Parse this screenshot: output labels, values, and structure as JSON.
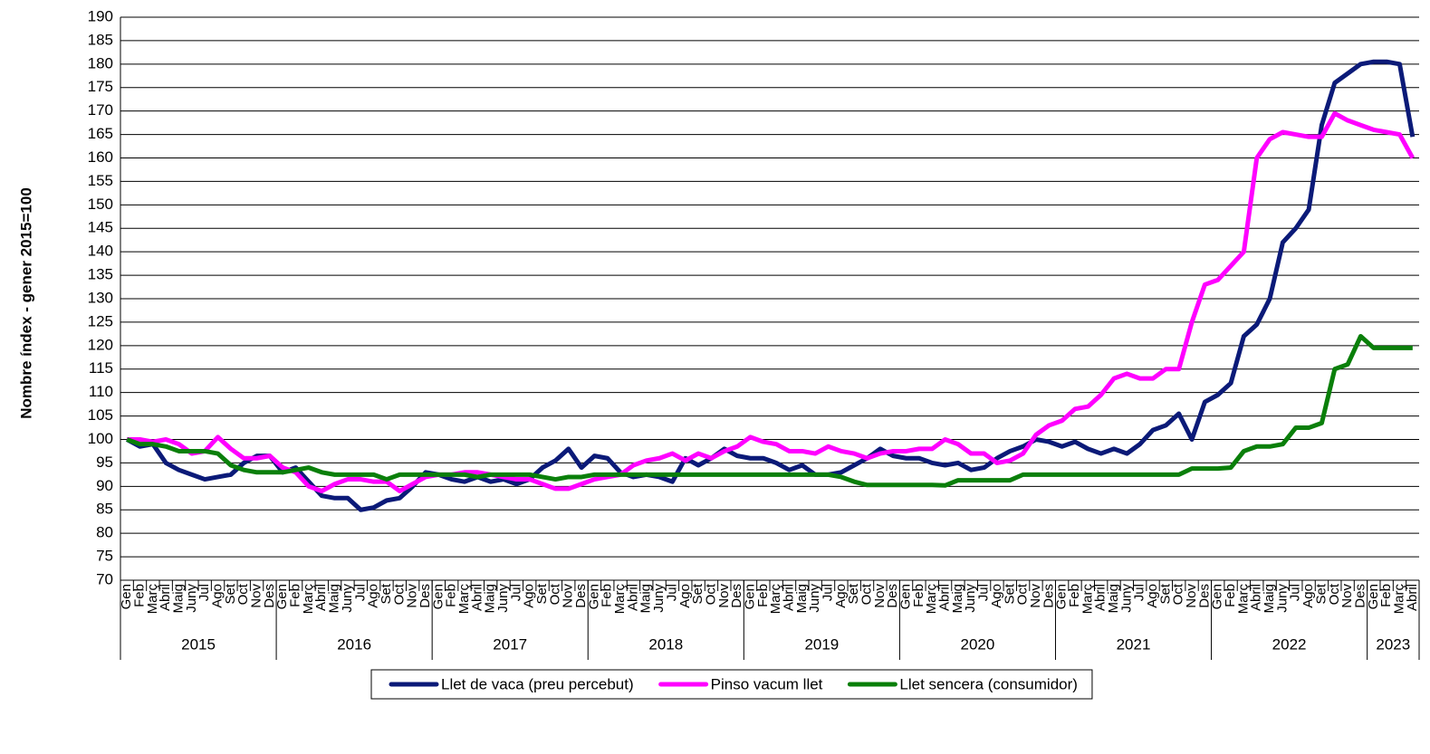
{
  "chart_data": {
    "type": "line",
    "y_label": "Nombre índex - gener 2015=100",
    "categories": [
      "Gen",
      "Feb",
      "Març",
      "Abril",
      "Maig",
      "Juny",
      "Jul",
      "Ago",
      "Set",
      "Oct",
      "Nov",
      "Des",
      "Gen",
      "Feb",
      "Març",
      "Abril",
      "Maig",
      "Juny",
      "Jul",
      "Ago",
      "Set",
      "Oct",
      "Nov",
      "Des",
      "Gen",
      "Feb",
      "Març",
      "Abril",
      "Maig",
      "Juny",
      "Jul",
      "Ago",
      "Set",
      "Oct",
      "Nov",
      "Des",
      "Gen",
      "Feb",
      "Març",
      "Abril",
      "Maig",
      "Juny",
      "Jul",
      "Ago",
      "Set",
      "Oct",
      "Nov",
      "Des",
      "Gen",
      "Feb",
      "Març",
      "Abril",
      "Maig",
      "Juny",
      "Jul",
      "Ago",
      "Set",
      "Oct",
      "Nov",
      "Des",
      "Gen",
      "Feb",
      "Març",
      "Abril",
      "Maig",
      "Juny",
      "Jul",
      "Ago",
      "Set",
      "Oct",
      "Nov",
      "Des",
      "Gen",
      "Feb",
      "Març",
      "Abril",
      "Maig",
      "Juny",
      "Jul",
      "Ago",
      "Set",
      "Oct",
      "Nov",
      "Des",
      "Gen",
      "Feb",
      "Març",
      "Abril",
      "Maig",
      "Juny",
      "Jul",
      "Ago",
      "Set",
      "Oct",
      "Nov",
      "Des",
      "Gen",
      "Feb",
      "Març",
      "Abril"
    ],
    "groups": [
      "2015",
      null,
      null,
      null,
      null,
      null,
      null,
      null,
      null,
      null,
      null,
      null,
      "2016",
      null,
      null,
      null,
      null,
      null,
      null,
      null,
      null,
      null,
      null,
      null,
      "2017",
      null,
      null,
      null,
      null,
      null,
      null,
      null,
      null,
      null,
      null,
      null,
      "2018",
      null,
      null,
      null,
      null,
      null,
      null,
      null,
      null,
      null,
      null,
      null,
      "2019",
      null,
      null,
      null,
      null,
      null,
      null,
      null,
      null,
      null,
      null,
      null,
      "2020",
      null,
      null,
      null,
      null,
      null,
      null,
      null,
      null,
      null,
      null,
      null,
      "2021",
      null,
      null,
      null,
      null,
      null,
      null,
      null,
      null,
      null,
      null,
      null,
      "2022",
      null,
      null,
      null,
      null,
      null,
      null,
      null,
      null,
      null,
      null,
      null,
      "2023",
      null,
      null,
      null
    ],
    "series": [
      {
        "name": "Llet de vaca (preu percebut)",
        "color": "#0b1a78",
        "values": [
          100,
          98.5,
          99,
          95,
          93.5,
          92.5,
          91.5,
          92,
          92.5,
          95,
          96.5,
          96.5,
          93,
          94,
          91,
          88,
          87.5,
          87.5,
          85,
          85.5,
          87,
          87.5,
          90,
          93,
          92.5,
          91.5,
          91,
          92,
          91,
          91.5,
          90.5,
          91.5,
          94,
          95.5,
          98,
          94,
          96.5,
          96,
          93,
          92,
          92.5,
          92,
          91,
          96,
          94.5,
          96,
          98,
          96.5,
          96,
          96,
          95,
          93.5,
          94.5,
          92.5,
          92.5,
          93,
          94.5,
          96,
          98,
          96.5,
          96,
          96,
          95,
          94.5,
          95,
          93.5,
          94,
          96,
          97.5,
          98.5,
          100,
          99.5,
          98.5,
          99.5,
          98,
          97,
          98,
          97,
          99,
          102,
          103,
          105.5,
          100,
          108,
          109.5,
          112,
          122,
          124.5,
          130,
          142,
          145,
          149,
          167,
          176,
          178,
          180,
          180.5,
          180.5,
          180,
          164.5
        ]
      },
      {
        "name": "Pinso vacum llet",
        "color": "#ff00ff",
        "values": [
          100,
          100,
          99.5,
          100,
          99,
          97,
          97.5,
          100.5,
          98,
          96,
          96,
          96.5,
          94,
          93,
          90,
          89,
          90.5,
          91.5,
          91.5,
          91,
          91,
          89,
          90.5,
          92,
          92.5,
          92.5,
          93,
          93,
          92.5,
          92,
          91.5,
          91.5,
          90.5,
          89.5,
          89.5,
          90.5,
          91.5,
          92,
          92.5,
          94.5,
          95.5,
          96,
          97,
          95.5,
          97,
          96,
          97.5,
          98.5,
          100.5,
          99.5,
          99,
          97.5,
          97.5,
          97,
          98.5,
          97.5,
          97,
          96,
          97,
          97.5,
          97.5,
          98,
          98,
          100,
          99,
          97,
          97,
          95,
          95.5,
          97,
          101,
          103,
          104,
          106.5,
          107,
          109.5,
          113,
          114,
          113,
          113,
          115,
          115,
          125,
          133,
          134,
          137,
          140,
          160,
          164,
          165.5,
          165,
          164.5,
          164.5,
          169.5,
          168,
          167,
          166,
          165.5,
          165,
          160
        ]
      },
      {
        "name": "Llet sencera (consumidor)",
        "color": "#0a7f0a",
        "values": [
          100,
          99,
          99,
          98.5,
          97.5,
          97.5,
          97.5,
          97,
          94.5,
          93.5,
          93,
          93,
          93,
          93.5,
          94,
          93,
          92.5,
          92.5,
          92.5,
          92.5,
          91.5,
          92.5,
          92.5,
          92.5,
          92.5,
          92.5,
          92.5,
          92,
          92.5,
          92.5,
          92.5,
          92.5,
          92,
          91.5,
          92,
          92,
          92.5,
          92.5,
          92.5,
          92.5,
          92.5,
          92.5,
          92.5,
          92.5,
          92.5,
          92.5,
          92.5,
          92.5,
          92.5,
          92.5,
          92.5,
          92.5,
          92.5,
          92.5,
          92.5,
          92,
          91,
          90.3,
          90.3,
          90.3,
          90.3,
          90.3,
          90.3,
          90.2,
          91.3,
          91.3,
          91.3,
          91.3,
          91.3,
          92.5,
          92.5,
          92.5,
          92.5,
          92.5,
          92.5,
          92.5,
          92.5,
          92.5,
          92.5,
          92.5,
          92.5,
          92.5,
          93.8,
          93.8,
          93.8,
          94,
          97.5,
          98.5,
          98.5,
          99,
          102.5,
          102.5,
          103.5,
          115,
          116,
          122,
          119.5,
          119.5,
          119.5,
          119.5
        ]
      }
    ],
    "ylim": [
      70,
      190
    ],
    "yticks": [
      70,
      75,
      80,
      85,
      90,
      95,
      100,
      105,
      110,
      115,
      120,
      125,
      130,
      135,
      140,
      145,
      150,
      155,
      160,
      165,
      170,
      175,
      180,
      185,
      190
    ],
    "grid": true
  }
}
